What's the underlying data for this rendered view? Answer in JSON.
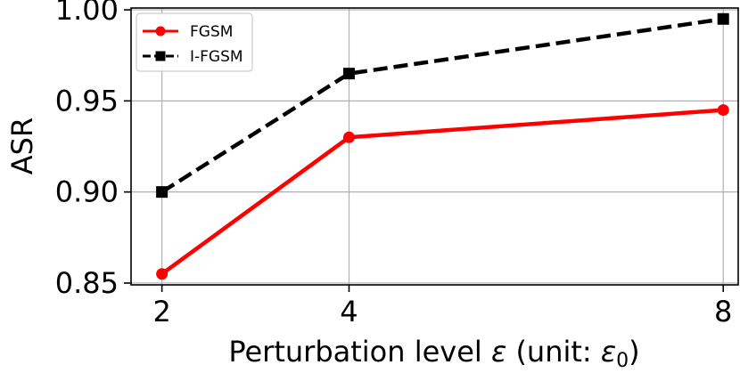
{
  "chart_data": {
    "type": "line",
    "x": [
      2,
      4,
      8
    ],
    "x_tick_labels": [
      "2",
      "4",
      "8"
    ],
    "xlim": [
      1.67,
      8.16
    ],
    "y_ticks": [
      0.85,
      0.9,
      0.95,
      1.0
    ],
    "y_tick_labels": [
      "0.85",
      "0.90",
      "0.95",
      "1.00"
    ],
    "ylim": [
      0.849,
      1.001
    ],
    "grid": true,
    "xlabel": "Perturbation level ε (unit: ε0)",
    "xlabel_parts": {
      "prefix": "Perturbation level ",
      "epsilon": "ε",
      "middle": " (unit: ",
      "epsilon0_base": "ε",
      "epsilon0_sub": "0",
      "suffix": ")"
    },
    "ylabel": "ASR",
    "legend_position": "top-left",
    "series": [
      {
        "name": "FGSM",
        "values": [
          0.855,
          0.93,
          0.945
        ],
        "color": "#ff0000",
        "line_style": "solid",
        "marker": "circle"
      },
      {
        "name": "I-FGSM",
        "values": [
          0.9,
          0.965,
          0.995
        ],
        "color": "#000000",
        "line_style": "dashed",
        "marker": "square"
      }
    ]
  }
}
